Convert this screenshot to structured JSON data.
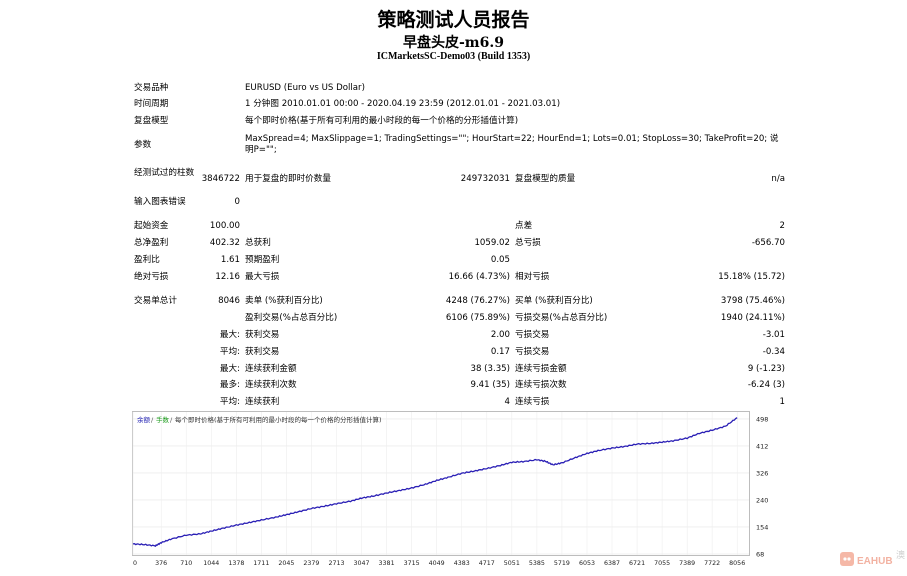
{
  "header": {
    "title": "策略测试人员报告",
    "subtitle": "早盘头皮-m6.9",
    "server": "ICMarketsSC-Demo03 (Build 1353)"
  },
  "info": {
    "symbol_label": "交易品种",
    "symbol_value": "EURUSD (Euro vs US Dollar)",
    "period_label": "时间周期",
    "period_value": "1 分钟图 2010.01.01 00:00 - 2020.04.19 23:59 (2012.01.01 - 2021.03.01)",
    "model_label": "复盘模型",
    "model_value": "每个即时价格(基于所有可利用的最小时段的每一个价格的分形插值计算)",
    "params_label": "参数",
    "params_value": "MaxSpread=4; MaxSlippage=1; TradingSettings=\"\"; HourStart=22; HourEnd=1; Lots=0.01; StopLoss=30; TakeProfit=20; 说明P=\"\";"
  },
  "stats": {
    "bars_label": "经测试过的柱数",
    "bars_value": "3846722",
    "ticks_label": "用于复盘的即时价数量",
    "ticks_value": "249732031",
    "quality_label": "复盘模型的质量",
    "quality_value": "n/a",
    "errors_label": "输入图表错误",
    "errors_value": "0",
    "deposit_label": "起始资金",
    "deposit_value": "100.00",
    "spread_label": "点差",
    "spread_value": "2",
    "net_label": "总净盈利",
    "net_value": "402.32",
    "gross_profit_label": "总获利",
    "gross_profit_value": "1059.02",
    "gross_loss_label": "总亏损",
    "gross_loss_value": "-656.70",
    "pf_label": "盈利比",
    "pf_value": "1.61",
    "expected_label": "预期盈利",
    "expected_value": "0.05",
    "abs_dd_label": "绝对亏损",
    "abs_dd_value": "12.16",
    "max_dd_label": "最大亏损",
    "max_dd_value": "16.66 (4.73%)",
    "rel_dd_label": "相对亏损",
    "rel_dd_value": "15.18% (15.72)",
    "trades_label": "交易单总计",
    "trades_value": "8046",
    "short_label": "卖单 (%获利百分比)",
    "short_value": "4248 (76.27%)",
    "long_label": "买单 (%获利百分比)",
    "long_value": "3798 (75.46%)",
    "profit_trades_label": "盈利交易(%占总百分比)",
    "profit_trades_value": "6106 (75.89%)",
    "loss_trades_label": "亏损交易(%占总百分比)",
    "loss_trades_value": "1940 (24.11%)",
    "largest_prefix": "最大:",
    "largest_profit_label": "获利交易",
    "largest_profit_value": "2.00",
    "largest_loss_label": "亏损交易",
    "largest_loss_value": "-3.01",
    "average_prefix": "平均:",
    "average_profit_label": "获利交易",
    "average_profit_value": "0.17",
    "average_loss_label": "亏损交易",
    "average_loss_value": "-0.34",
    "max_prefix": "最大:",
    "max_cons_wins_label": "连续获利金额",
    "max_cons_wins_value": "38 (3.35)",
    "max_cons_losses_label": "连续亏损金额",
    "max_cons_losses_value": "9 (-1.23)",
    "most_prefix": "最多:",
    "most_cons_profit_label": "连续获利次数",
    "most_cons_profit_value": "9.41 (35)",
    "most_cons_loss_label": "连续亏损次数",
    "most_cons_loss_value": "-6.24 (3)",
    "avg_prefix": "平均:",
    "avg_cons_wins_label": "连续获利",
    "avg_cons_wins_value": "4",
    "avg_cons_losses_label": "连续亏损",
    "avg_cons_losses_value": "1"
  },
  "chart_data": {
    "type": "line",
    "legend": [
      "余额",
      "手数",
      "每个即时价格(基于所有可利用的最小时段的每一个价格的分形插值计算)"
    ],
    "x_ticks": [
      0,
      376,
      710,
      1044,
      1378,
      1711,
      2045,
      2379,
      2713,
      3047,
      3381,
      3715,
      4049,
      4383,
      4717,
      5051,
      5385,
      5719,
      6053,
      6387,
      6721,
      7055,
      7389,
      7722,
      8056
    ],
    "y_ticks": [
      68,
      154,
      240,
      326,
      412,
      498
    ],
    "xlim": [
      0,
      8200
    ],
    "ylim": [
      68,
      520
    ],
    "series": [
      {
        "name": "余额",
        "color": "#2a1fb5",
        "x": [
          0,
          150,
          300,
          376,
          500,
          710,
          900,
          1044,
          1200,
          1378,
          1550,
          1711,
          1900,
          2045,
          2200,
          2379,
          2550,
          2713,
          2900,
          3047,
          3200,
          3381,
          3550,
          3715,
          3900,
          4049,
          4200,
          4383,
          4550,
          4717,
          4900,
          5051,
          5200,
          5385,
          5500,
          5600,
          5719,
          5900,
          6053,
          6200,
          6387,
          6550,
          6721,
          6900,
          7055,
          7200,
          7389,
          7550,
          7722,
          7900,
          8056
        ],
        "y": [
          100,
          98,
          94,
          104,
          115,
          128,
          132,
          141,
          150,
          160,
          168,
          176,
          185,
          193,
          202,
          213,
          220,
          228,
          236,
          246,
          252,
          262,
          270,
          278,
          290,
          302,
          312,
          325,
          332,
          340,
          350,
          360,
          362,
          368,
          363,
          352,
          358,
          375,
          388,
          397,
          405,
          410,
          418,
          420,
          424,
          428,
          437,
          452,
          462,
          475,
          502
        ]
      }
    ]
  },
  "watermark": {
    "brand": "EAHUB",
    "side_text": "澳"
  }
}
